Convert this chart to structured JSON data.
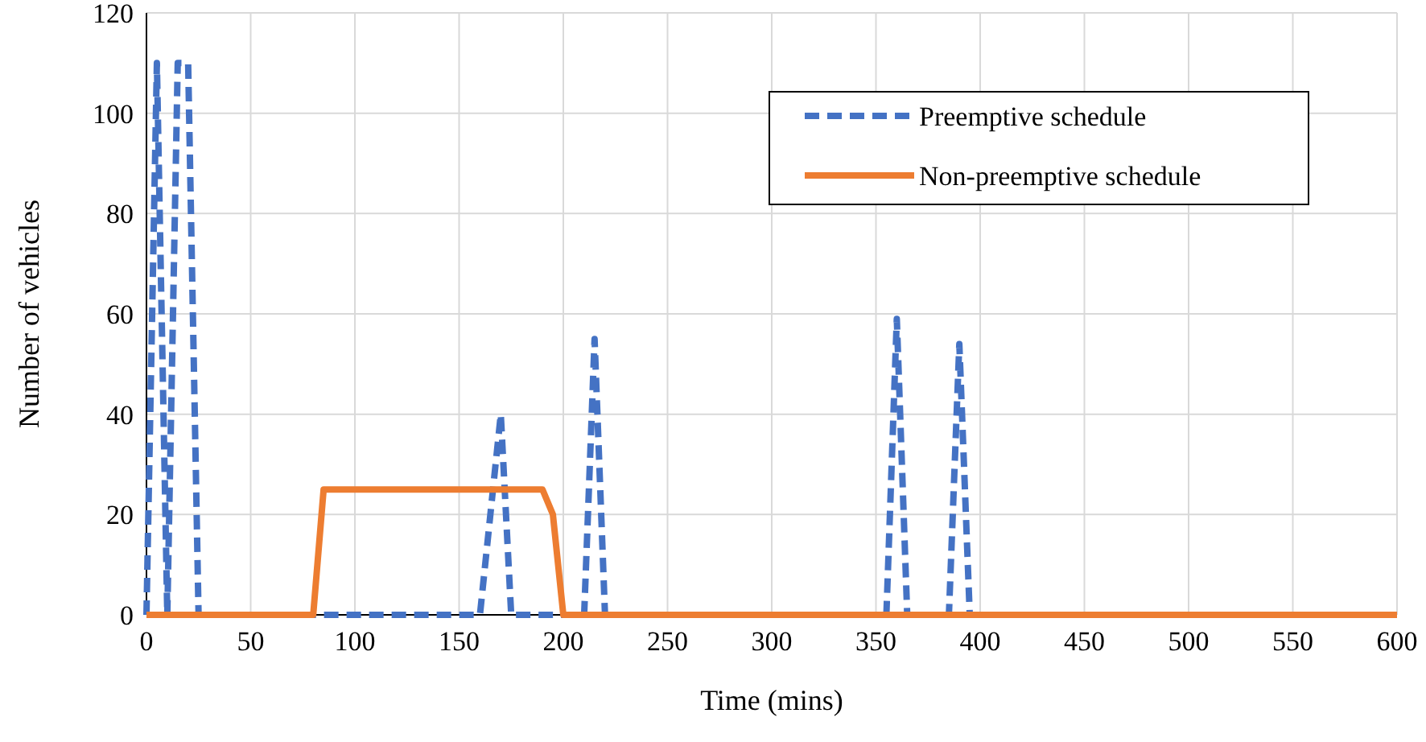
{
  "chart_data": {
    "type": "line",
    "xlabel": "Time (mins)",
    "ylabel": "Number of vehicles",
    "xlim": [
      0,
      600
    ],
    "xticks": [
      0,
      50,
      100,
      150,
      200,
      250,
      300,
      350,
      400,
      450,
      500,
      550,
      600
    ],
    "ylim": [
      0,
      120
    ],
    "yticks": [
      0,
      20,
      40,
      60,
      80,
      100,
      120
    ],
    "grid": true,
    "legend": "top right",
    "series": [
      {
        "name": "Preemptive schedule",
        "color": "#4472c4",
        "line_style": "dashed",
        "x": [
          0,
          5,
          10,
          15,
          20,
          25,
          30,
          160,
          170,
          175,
          180,
          210,
          215,
          220,
          225,
          350,
          355,
          360,
          365,
          385,
          390,
          395,
          400,
          600
        ],
        "values": [
          0,
          110,
          0,
          110,
          110,
          0,
          0,
          0,
          40,
          0,
          0,
          0,
          55,
          0,
          0,
          0,
          0,
          59,
          0,
          0,
          54,
          0,
          0,
          0
        ]
      },
      {
        "name": "Non-preemptive schedule",
        "color": "#ed7d31",
        "line_style": "solid",
        "x": [
          0,
          80,
          85,
          190,
          195,
          200,
          600
        ],
        "values": [
          0,
          0,
          25,
          25,
          20,
          0,
          0
        ]
      }
    ]
  }
}
